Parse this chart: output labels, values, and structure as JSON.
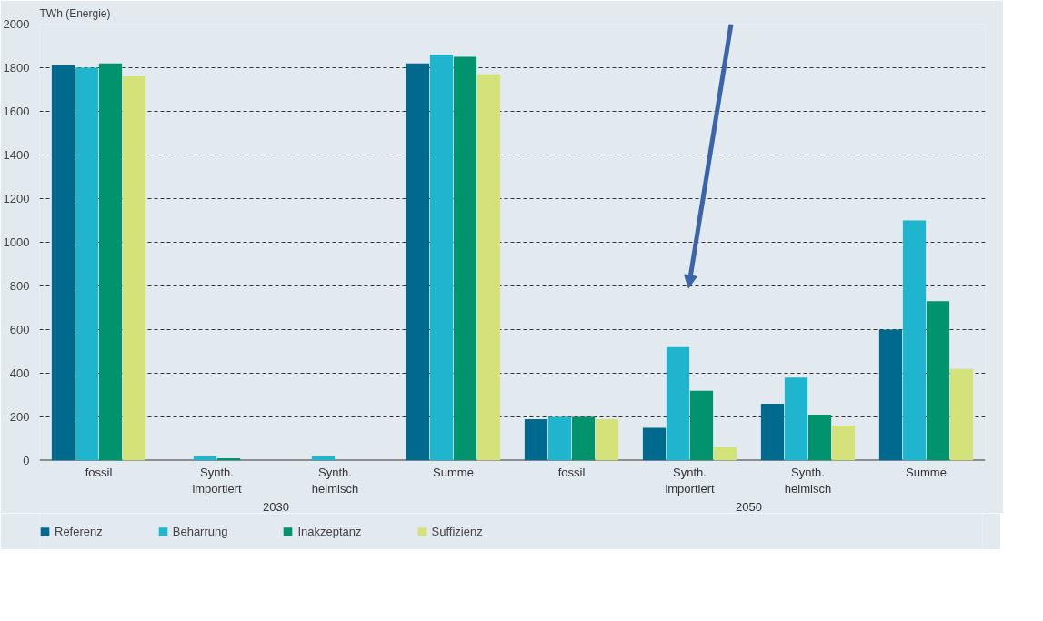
{
  "chart_data": {
    "type": "bar",
    "ylabel": "TWh  (Energie)",
    "categories": [
      "fossil",
      "Synth. importiert",
      "Synth. heimisch",
      "Summe",
      "fossil",
      "Synth. importiert",
      "Synth. heimisch",
      "Summe"
    ],
    "series": [
      {
        "name": "Referenz",
        "color": "#006a8e",
        "values": [
          1810,
          null,
          null,
          1820,
          190,
          150,
          260,
          600
        ]
      },
      {
        "name": "Beharrung",
        "color": "#1fb5cf",
        "values": [
          1800,
          20,
          20,
          1860,
          200,
          520,
          380,
          1100
        ]
      },
      {
        "name": "Inakzeptanz",
        "color": "#00936e",
        "values": [
          1820,
          10,
          null,
          1850,
          200,
          320,
          210,
          730
        ]
      },
      {
        "name": "Suffizienz",
        "color": "#d4e27a",
        "values": [
          1760,
          null,
          null,
          1770,
          190,
          60,
          160,
          420
        ]
      }
    ],
    "annotations": [
      "2030",
      "2050"
    ],
    "ylim": [
      0,
      2000
    ],
    "yticks": [
      0,
      200,
      400,
      600,
      800,
      1000,
      1200,
      1400,
      1600,
      1800,
      2000
    ],
    "grid": "y",
    "legend": "bottom"
  }
}
